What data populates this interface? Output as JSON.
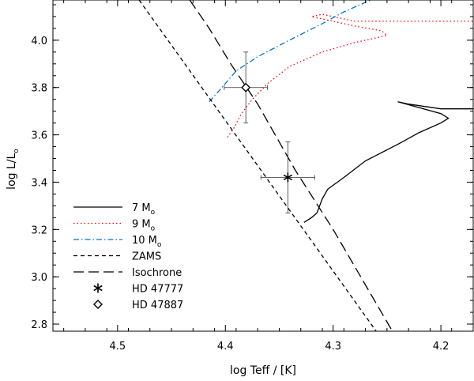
{
  "chart_data": {
    "type": "line",
    "xlabel": "log Teff / [K]",
    "ylabel_main": "log L/L",
    "ylabel_sub": "o",
    "xlim": [
      4.56,
      4.17
    ],
    "ylim": [
      2.77,
      4.17
    ],
    "x_ticks": [
      4.5,
      4.4,
      4.3,
      4.2
    ],
    "x_tick_labels": [
      "4.5",
      "4.4",
      "4.3",
      "4.2"
    ],
    "y_ticks": [
      2.8,
      3.0,
      3.2,
      3.4,
      3.6,
      3.8,
      4.0
    ],
    "y_tick_labels": [
      "2.8",
      "3.0",
      "3.2",
      "3.4",
      "3.6",
      "3.8",
      "4.0"
    ],
    "x_minor_step": 0.02,
    "y_minor_step": 0.05,
    "grid": false,
    "legend_position": "bottom-left",
    "series": [
      {
        "name": "7 M",
        "name_sub": "o",
        "style": "solid",
        "color": "#000000",
        "points": [
          [
            4.327,
            3.23
          ],
          [
            4.32,
            3.25
          ],
          [
            4.315,
            3.27
          ],
          [
            4.31,
            3.33
          ],
          [
            4.305,
            3.37
          ],
          [
            4.29,
            3.42
          ],
          [
            4.27,
            3.49
          ],
          [
            4.24,
            3.56
          ],
          [
            4.22,
            3.61
          ],
          [
            4.2,
            3.65
          ],
          [
            4.193,
            3.67
          ],
          [
            4.2,
            3.69
          ],
          [
            4.24,
            3.74
          ],
          [
            4.23,
            3.73
          ],
          [
            4.2,
            3.71
          ],
          [
            4.17,
            3.71
          ]
        ]
      },
      {
        "name": "9 M",
        "name_sub": "o",
        "style": "dotted",
        "color": "#ff0000",
        "points": [
          [
            4.398,
            3.59
          ],
          [
            4.392,
            3.63
          ],
          [
            4.385,
            3.69
          ],
          [
            4.375,
            3.75
          ],
          [
            4.36,
            3.82
          ],
          [
            4.34,
            3.89
          ],
          [
            4.31,
            3.95
          ],
          [
            4.28,
            3.99
          ],
          [
            4.25,
            4.02
          ],
          [
            4.255,
            4.04
          ],
          [
            4.28,
            4.06
          ],
          [
            4.32,
            4.1
          ],
          [
            4.31,
            4.11
          ],
          [
            4.28,
            4.08
          ],
          [
            4.22,
            4.08
          ],
          [
            4.17,
            4.08
          ]
        ]
      },
      {
        "name": "10 M",
        "name_sub": "o",
        "style": "dashdot",
        "color": "#0073cf",
        "points": [
          [
            4.415,
            3.74
          ],
          [
            4.405,
            3.79
          ],
          [
            4.39,
            3.87
          ],
          [
            4.37,
            3.93
          ],
          [
            4.345,
            3.99
          ],
          [
            4.31,
            4.07
          ],
          [
            4.29,
            4.12
          ],
          [
            4.265,
            4.17
          ]
        ]
      },
      {
        "name": "ZAMS",
        "style": "shortdash",
        "color": "#000000",
        "points": [
          [
            4.48,
            4.17
          ],
          [
            4.26,
            2.77
          ]
        ]
      },
      {
        "name": "Isochrone",
        "style": "longdash",
        "color": "#000000",
        "points": [
          [
            4.433,
            4.17
          ],
          [
            4.415,
            4.05
          ],
          [
            4.395,
            3.9
          ],
          [
            4.37,
            3.73
          ],
          [
            4.335,
            3.45
          ],
          [
            4.3,
            3.2
          ],
          [
            4.245,
            2.77
          ]
        ]
      }
    ],
    "stars": [
      {
        "name": "HD 47777",
        "marker": "asterisk",
        "x": 4.342,
        "y": 3.42,
        "x_err": 0.025,
        "y_err": 0.15
      },
      {
        "name": "HD 47887",
        "marker": "diamond",
        "x": 4.381,
        "y": 3.8,
        "x_err": 0.02,
        "y_err": 0.15
      }
    ]
  }
}
